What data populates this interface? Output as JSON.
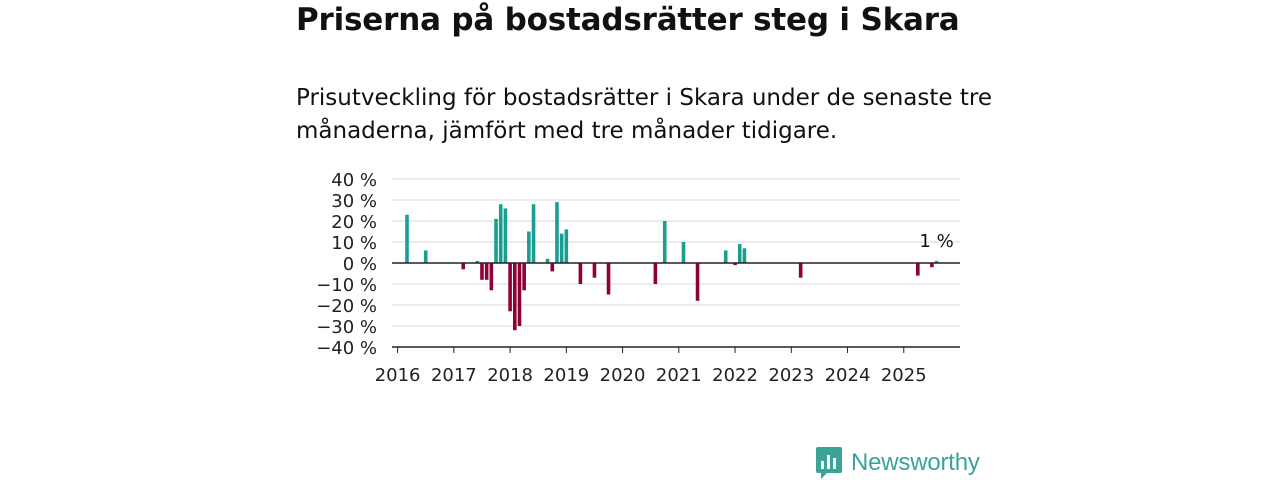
{
  "title": "Priserna på bostadsrätter steg i Skara",
  "subtitle": "Prisutveckling för bostadsrätter i Skara under de senaste tre månaderna, jämfört med tre månader tidigare.",
  "brand": {
    "name": "Newsworthy"
  },
  "colors": {
    "positive": "#1a9e92",
    "negative": "#8f0038",
    "grid": "#d9d9d9",
    "axis": "#222222"
  },
  "chart_data": {
    "type": "bar",
    "ylim": [
      -40,
      40
    ],
    "yticks": [
      40,
      30,
      20,
      10,
      0,
      -10,
      -20,
      -30,
      -40
    ],
    "ytick_labels": [
      "40 %",
      "30 %",
      "20 %",
      "10 %",
      "0 %",
      "−10 %",
      "−20 %",
      "−30 %",
      "−40 %"
    ],
    "xlim": [
      2015.9,
      2026.0
    ],
    "xtick_labels": [
      "2016",
      "2017",
      "2018",
      "2019",
      "2020",
      "2021",
      "2022",
      "2023",
      "2024",
      "2025"
    ],
    "grid": true,
    "annotation": {
      "text": "1 %",
      "date": "2025-08",
      "value": 1
    },
    "series": [
      {
        "x": [
          "2016-03",
          "2016-07",
          "2017-03",
          "2017-06",
          "2017-07",
          "2017-08",
          "2017-09",
          "2017-10",
          "2017-11",
          "2017-12",
          "2018-01",
          "2018-02",
          "2018-03",
          "2018-04",
          "2018-05",
          "2018-06",
          "2018-09",
          "2018-10",
          "2018-11",
          "2018-12",
          "2019-01",
          "2019-04",
          "2019-07",
          "2019-10",
          "2020-08",
          "2020-10",
          "2021-02",
          "2021-05",
          "2021-11",
          "2022-01",
          "2022-02",
          "2022-03",
          "2023-03",
          "2025-04",
          "2025-07",
          "2025-08"
        ],
        "values": [
          23,
          6,
          -3,
          1,
          -8,
          -8,
          -13,
          21,
          28,
          26,
          -23,
          -32,
          -30,
          -13,
          15,
          28,
          2,
          -4,
          29,
          14,
          16,
          -10,
          -7,
          -15,
          -10,
          20,
          10,
          -18,
          6,
          -1,
          9,
          7,
          -7,
          -6,
          -2,
          1
        ]
      }
    ]
  }
}
